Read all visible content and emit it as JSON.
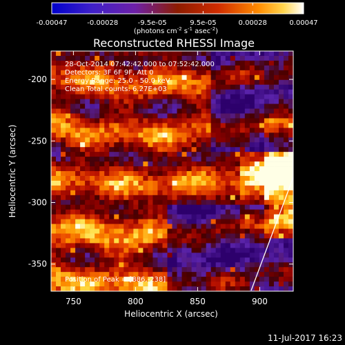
{
  "chart_data": {
    "type": "heatmap",
    "title": "Reconstructed RHESSI Image",
    "xlabel": "Heliocentric X (arcsec)",
    "ylabel": "Heliocentric Y (arcsec)",
    "xlim": [
      732,
      927
    ],
    "ylim": [
      -372,
      -177
    ],
    "x_ticks": [
      750,
      800,
      850,
      900
    ],
    "y_ticks": [
      -200,
      -250,
      -300,
      -350
    ],
    "colorbar": {
      "ticks": [
        "-0.00047",
        "-0.00028",
        "-9.5e-05",
        "9.5e-05",
        "0.00028",
        "0.00047"
      ],
      "label_main": "(photons cm",
      "label_exp1": "-2",
      "label_mid1": " s",
      "label_exp2": "-1",
      "label_mid2": " asec",
      "label_exp3": "-2",
      "label_end": ")",
      "min": -0.00047,
      "max": 0.00047
    },
    "annotations": {
      "time_range": "28-Oct-2014 07:42:42.000 to 07:52:42.000",
      "detectors": "Detectors: 3F 6F 9F, Att 0",
      "energy_range": "Energy Range: 25.0 - 50.0 keV",
      "clean_counts": "Clean    Total counts: 6.27E+03",
      "peak": "Position of Peak = [886,-238]"
    },
    "peak_position": [
      886,
      -238
    ],
    "grid": false,
    "legend": "colorbar-top",
    "date_stamp": "11-Jul-2017 16:23"
  }
}
